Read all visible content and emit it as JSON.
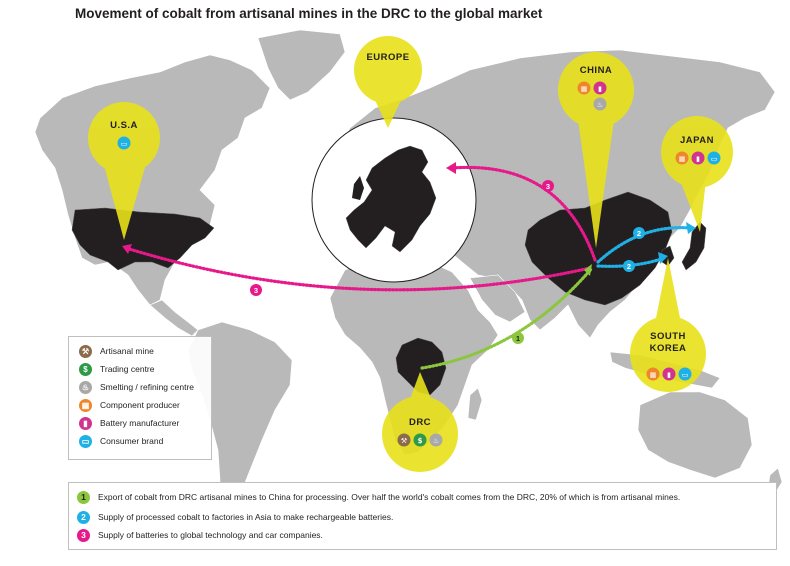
{
  "title": "Movement of cobalt from artisanal mines in the DRC to the global market",
  "colors": {
    "ocean": "#ffffff",
    "land": "#b9b9b9",
    "highlight_country": "#231f20",
    "spotlight": "#e8e21a",
    "route_1": "#8cc63f",
    "route_2": "#1fb1e6",
    "route_3": "#e6198a"
  },
  "regions": {
    "usa": "U.S.A",
    "europe": "EUROPE",
    "china": "CHINA",
    "japan": "JAPAN",
    "south_korea_line1": "SOUTH",
    "south_korea_line2": "KOREA",
    "drc": "DRC"
  },
  "region_icons": {
    "usa": [
      "consumer-brand"
    ],
    "europe": [],
    "china": [
      "component-producer",
      "battery-manufacturer",
      "smelting-refining-centre"
    ],
    "japan": [
      "component-producer",
      "battery-manufacturer",
      "consumer-brand"
    ],
    "south_korea": [
      "component-producer",
      "battery-manufacturer",
      "consumer-brand"
    ],
    "drc": [
      "artisanal-mine",
      "trading-centre",
      "smelting-refining-centre"
    ]
  },
  "routes": [
    {
      "number": "1",
      "from": "DRC",
      "to": "China"
    },
    {
      "number": "2",
      "from": "China",
      "to": "Japan"
    },
    {
      "number": "2",
      "from": "China",
      "to": "South Korea"
    },
    {
      "number": "3",
      "from": "China",
      "to": "Europe"
    },
    {
      "number": "3",
      "from": "China",
      "to": "U.S.A"
    }
  ],
  "legend": [
    {
      "label": "Artisanal mine",
      "icon": "artisanal-mine",
      "color": "#8b6b4a",
      "glyph": "⚒"
    },
    {
      "label": "Trading centre",
      "icon": "trading-centre",
      "color": "#2f9a46",
      "glyph": "$"
    },
    {
      "label": "Smelting / refining centre",
      "icon": "smelting-refining-centre",
      "color": "#a8a8a8",
      "glyph": "♨"
    },
    {
      "label": "Component producer",
      "icon": "component-producer",
      "color": "#f0862a",
      "glyph": "▦"
    },
    {
      "label": "Battery manufacturer",
      "icon": "battery-manufacturer",
      "color": "#d2338f",
      "glyph": "▮"
    },
    {
      "label": "Consumer brand",
      "icon": "consumer-brand",
      "color": "#1fb1e6",
      "glyph": "▭"
    }
  ],
  "notes": [
    {
      "number": "1",
      "color": "#8cc63f",
      "text": "Export of cobalt from DRC artisanal mines to China for processing. Over half the world's cobalt comes from the DRC, 20% of which is from artisanal mines."
    },
    {
      "number": "2",
      "color": "#1fb1e6",
      "text": "Supply of processed cobalt to factories in Asia to make rechargeable batteries."
    },
    {
      "number": "3",
      "color": "#e6198a",
      "text": "Supply of batteries to global technology and car companies."
    }
  ]
}
